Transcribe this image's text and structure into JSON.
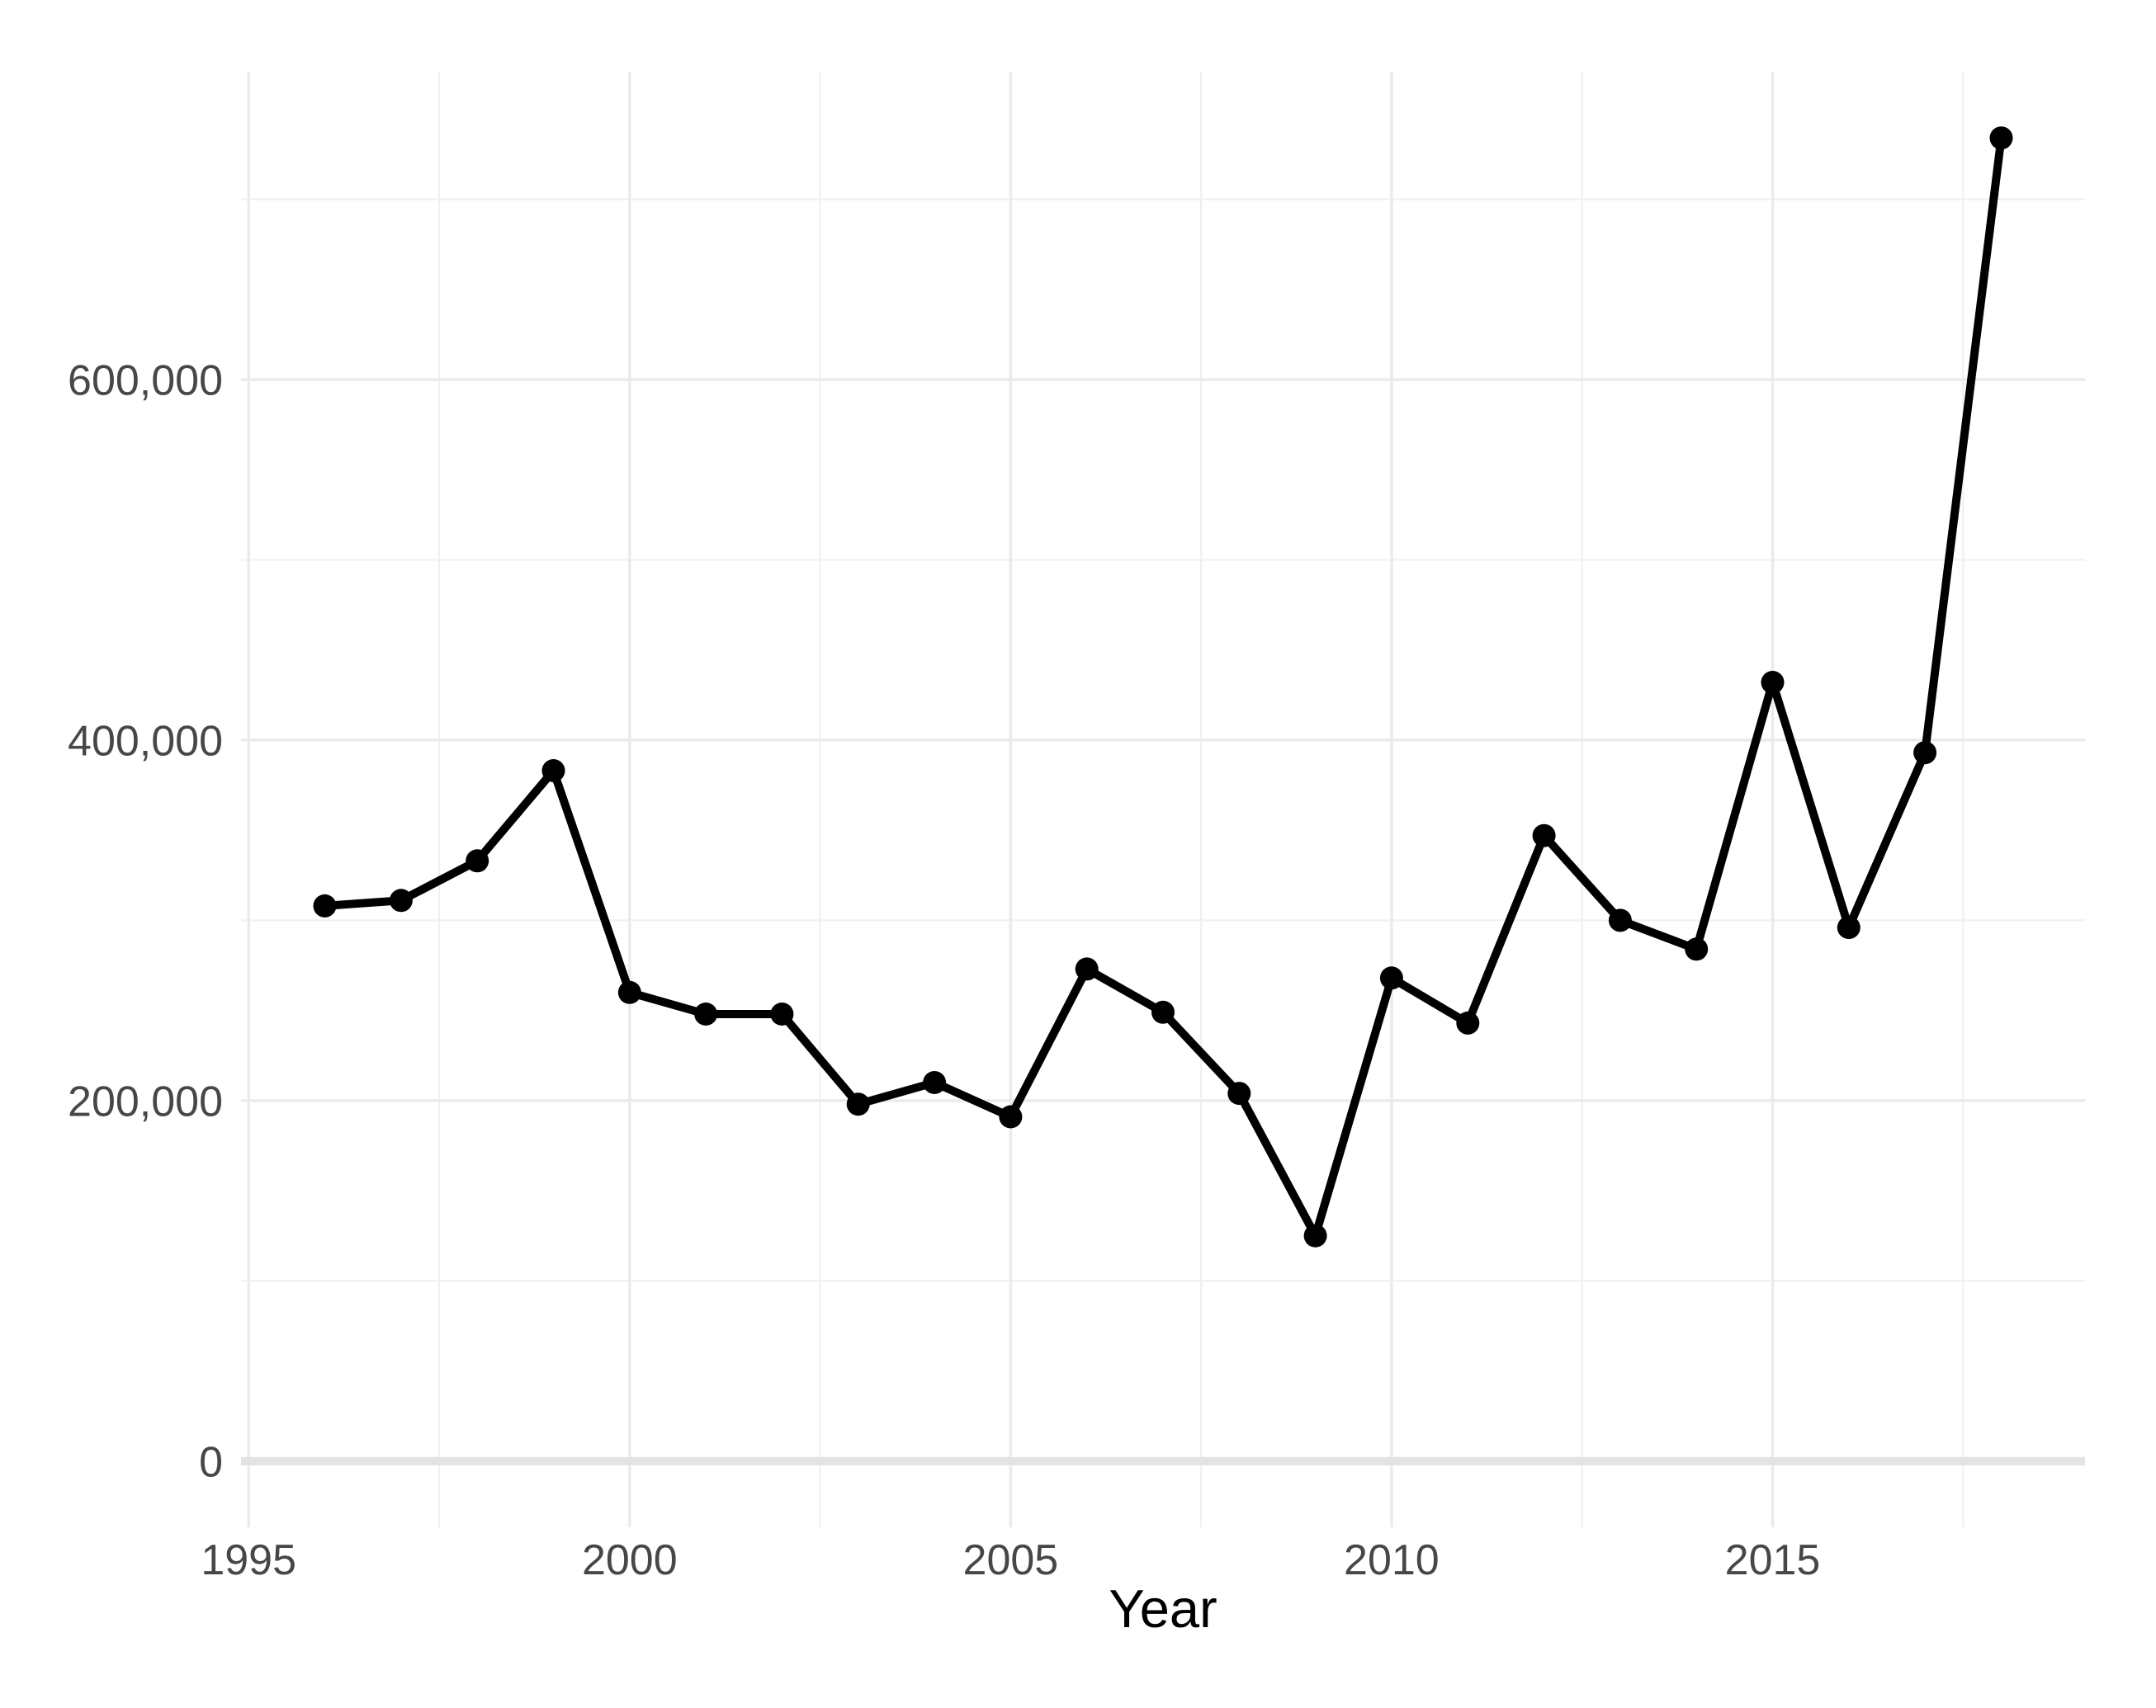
{
  "chart_data": {
    "type": "line",
    "title": "",
    "xlabel": "Year",
    "ylabel": "",
    "x": [
      1996,
      1997,
      1998,
      1999,
      2000,
      2001,
      2002,
      2003,
      2004,
      2005,
      2006,
      2007,
      2008,
      2009,
      2010,
      2011,
      2012,
      2013,
      2014,
      2015,
      2016,
      2017,
      2018
    ],
    "series": [
      {
        "name": "value",
        "values": [
          308000,
          311000,
          333000,
          383000,
          260000,
          248000,
          248000,
          198000,
          210000,
          191000,
          273000,
          249000,
          204000,
          125000,
          268000,
          243000,
          347000,
          300000,
          284000,
          432000,
          296000,
          393000,
          734000
        ]
      }
    ],
    "xlim": [
      1994.9,
      2019.1
    ],
    "ylim": [
      -36700,
      770700
    ],
    "baseline": 0,
    "x_major_ticks": [
      {
        "value": 1995,
        "label": "1995"
      },
      {
        "value": 2000,
        "label": "2000"
      },
      {
        "value": 2005,
        "label": "2005"
      },
      {
        "value": 2010,
        "label": "2010"
      },
      {
        "value": 2015,
        "label": "2015"
      }
    ],
    "x_minor_ticks": [
      1997.5,
      2002.5,
      2007.5,
      2012.5,
      2017.5
    ],
    "y_major_ticks": [
      {
        "value": 0,
        "label": "0"
      },
      {
        "value": 200000,
        "label": "200,000"
      },
      {
        "value": 400000,
        "label": "400,000"
      },
      {
        "value": 600000,
        "label": "600,000"
      }
    ],
    "y_minor_ticks": [
      100000,
      300000,
      500000,
      700000
    ],
    "grid": "major+minor",
    "legend": false,
    "marker": "filled-circle",
    "colors": {
      "line": "#000000",
      "point": "#000000",
      "grid_major": "#EBEBEB",
      "grid_minor": "#F0F0F0",
      "baseline": "#E3E3E3",
      "axis_text": "#474747",
      "axis_title": "#000000",
      "background": "#FFFFFF"
    }
  }
}
